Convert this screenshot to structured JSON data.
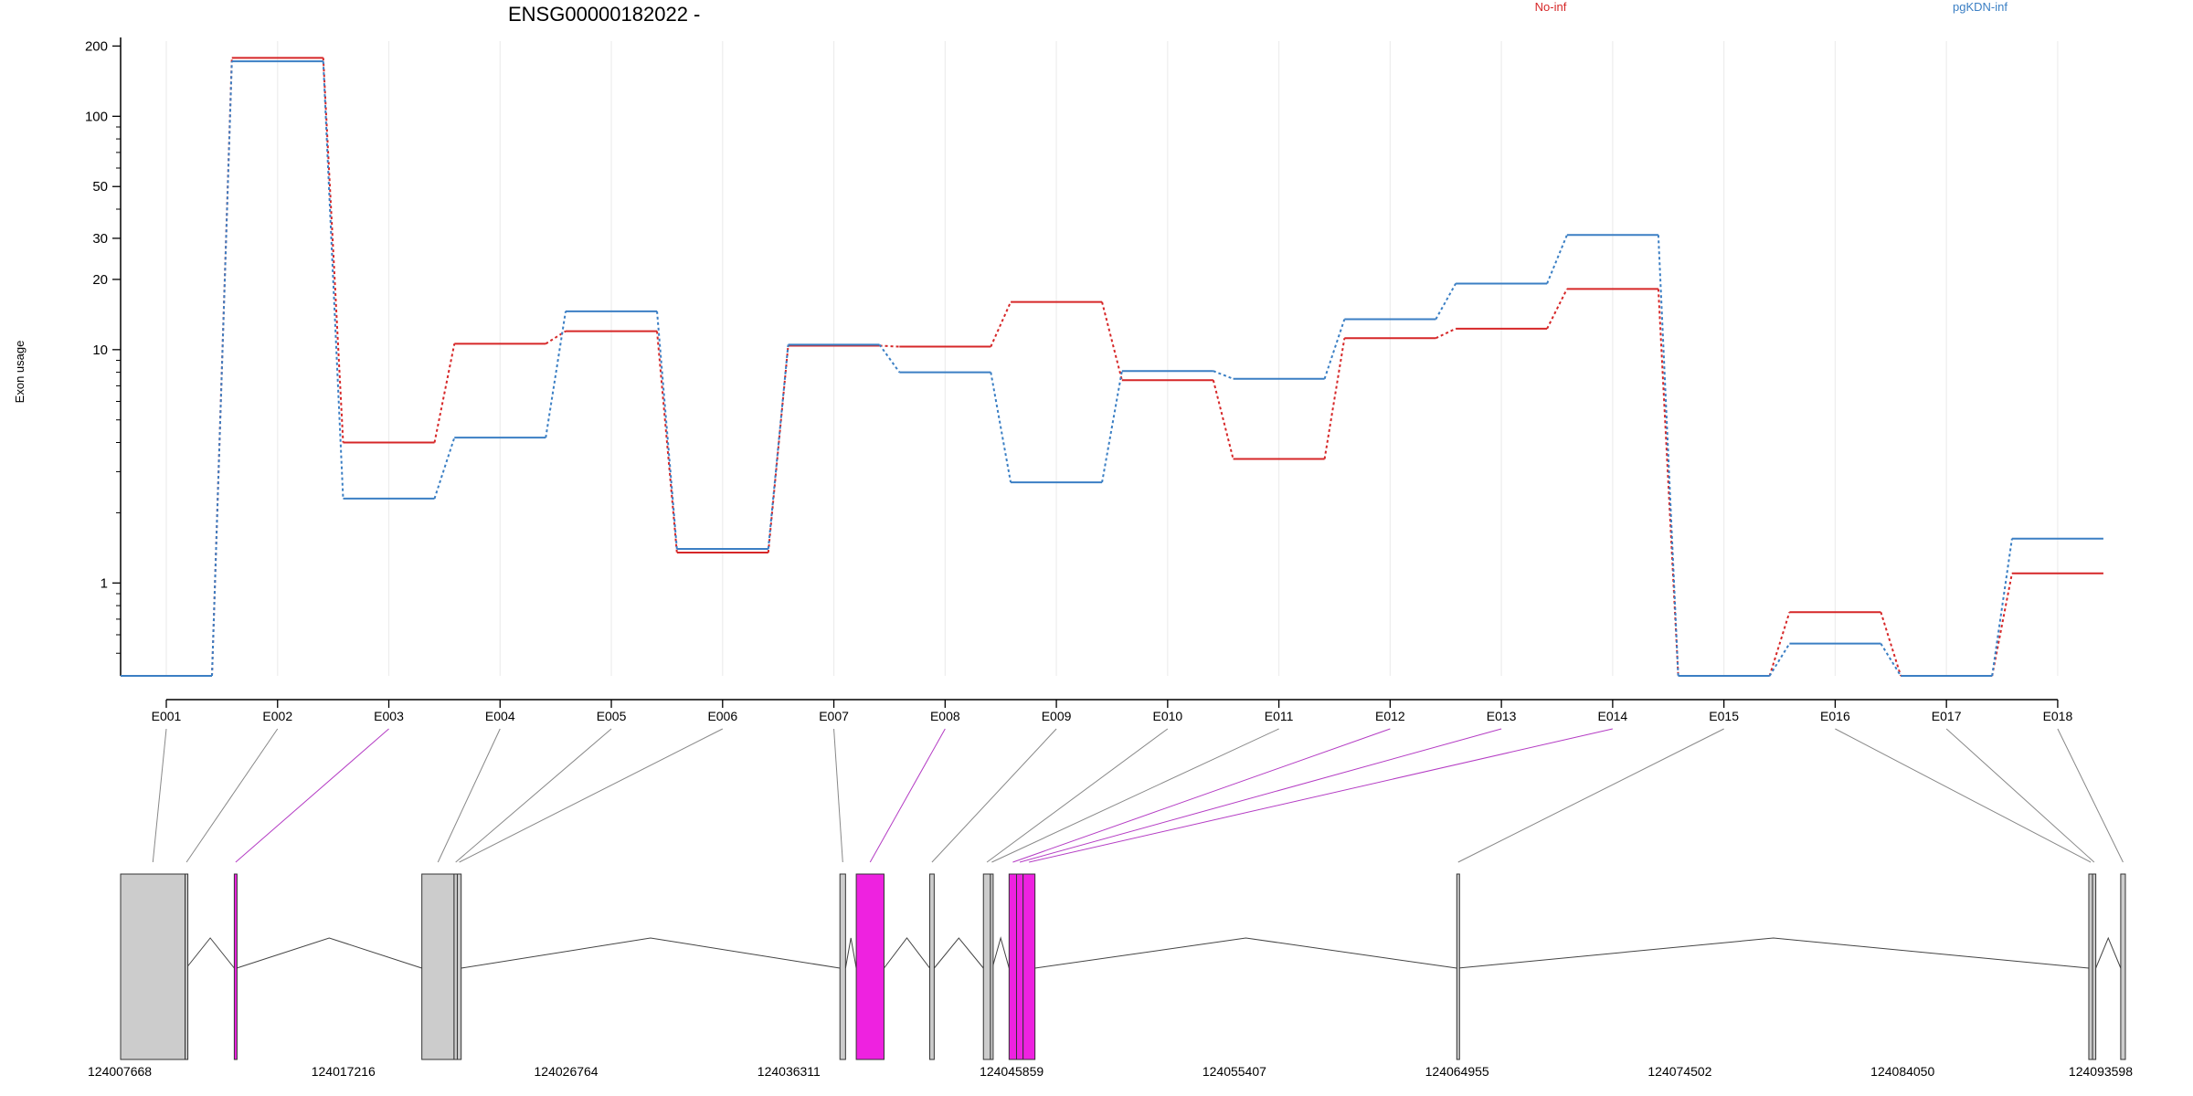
{
  "chart_data": {
    "type": "line",
    "title": "ENSG00000182022 -",
    "ylabel": "Exon usage",
    "xlabel": "",
    "yscale": "log",
    "ylim": [
      0.4,
      210
    ],
    "yticks": [
      1,
      10,
      20,
      30,
      50,
      100,
      200
    ],
    "categories": [
      "E001",
      "E002",
      "E003",
      "E004",
      "E005",
      "E006",
      "E007",
      "E008",
      "E009",
      "E010",
      "E011",
      "E012",
      "E013",
      "E014",
      "E015",
      "E016",
      "E017",
      "E018"
    ],
    "series": [
      {
        "name": "No-inf",
        "color": "#d62728",
        "values": [
          0.4,
          178,
          4.0,
          10.6,
          12.0,
          1.35,
          10.4,
          10.3,
          16.0,
          7.4,
          3.4,
          11.2,
          12.3,
          18.2,
          0.4,
          0.75,
          0.4,
          1.1
        ]
      },
      {
        "name": "pgKDN-inf",
        "color": "#3b7fc4",
        "values": [
          0.4,
          172,
          2.3,
          4.2,
          14.6,
          1.4,
          10.5,
          8.0,
          2.7,
          8.1,
          7.5,
          13.5,
          19.2,
          31.0,
          0.4,
          0.55,
          0.4,
          1.55
        ]
      }
    ],
    "legend": [
      "No-inf",
      "pgKDN-inf"
    ],
    "gene_model": {
      "coordinate_ticks": [
        "124007668",
        "124017216",
        "124026764",
        "124036311",
        "124045859",
        "124055407",
        "124064955",
        "124074502",
        "124084050",
        "124093598"
      ],
      "highlight_color": "#ee22e0",
      "exon_color": "#cccccc",
      "exons": [
        {
          "name": "E001",
          "start": 124007668,
          "end": 124010433,
          "highlight": false
        },
        {
          "name": "E002",
          "start": 124010433,
          "end": 124010480,
          "highlight": false
        },
        {
          "name": "E003",
          "start": 124012540,
          "end": 124012640,
          "highlight": true
        },
        {
          "name": "E004",
          "start": 124020580,
          "end": 124021960,
          "highlight": false
        },
        {
          "name": "E005",
          "start": 124021960,
          "end": 124022100,
          "highlight": false
        },
        {
          "name": "E006",
          "start": 124022100,
          "end": 124022265,
          "highlight": false
        },
        {
          "name": "E007",
          "start": 124038500,
          "end": 124038740,
          "highlight": false
        },
        {
          "name": "E008",
          "start": 124039200,
          "end": 124040390,
          "highlight": true
        },
        {
          "name": "E009",
          "start": 124042350,
          "end": 124042540,
          "highlight": false
        },
        {
          "name": "E010",
          "start": 124044650,
          "end": 124044950,
          "highlight": false
        },
        {
          "name": "E011",
          "start": 124044950,
          "end": 124045030,
          "highlight": false
        },
        {
          "name": "E012",
          "start": 124045750,
          "end": 124046070,
          "highlight": true
        },
        {
          "name": "E013",
          "start": 124046070,
          "end": 124046350,
          "highlight": true
        },
        {
          "name": "E014",
          "start": 124046350,
          "end": 124046860,
          "highlight": true
        },
        {
          "name": "E015",
          "start": 124064940,
          "end": 124064990,
          "highlight": false
        },
        {
          "name": "E016",
          "start": 124092030,
          "end": 124092190,
          "highlight": false
        },
        {
          "name": "E017",
          "start": 124092190,
          "end": 124092330,
          "highlight": false
        },
        {
          "name": "E018",
          "start": 124093398,
          "end": 124093598,
          "highlight": false
        }
      ]
    }
  }
}
